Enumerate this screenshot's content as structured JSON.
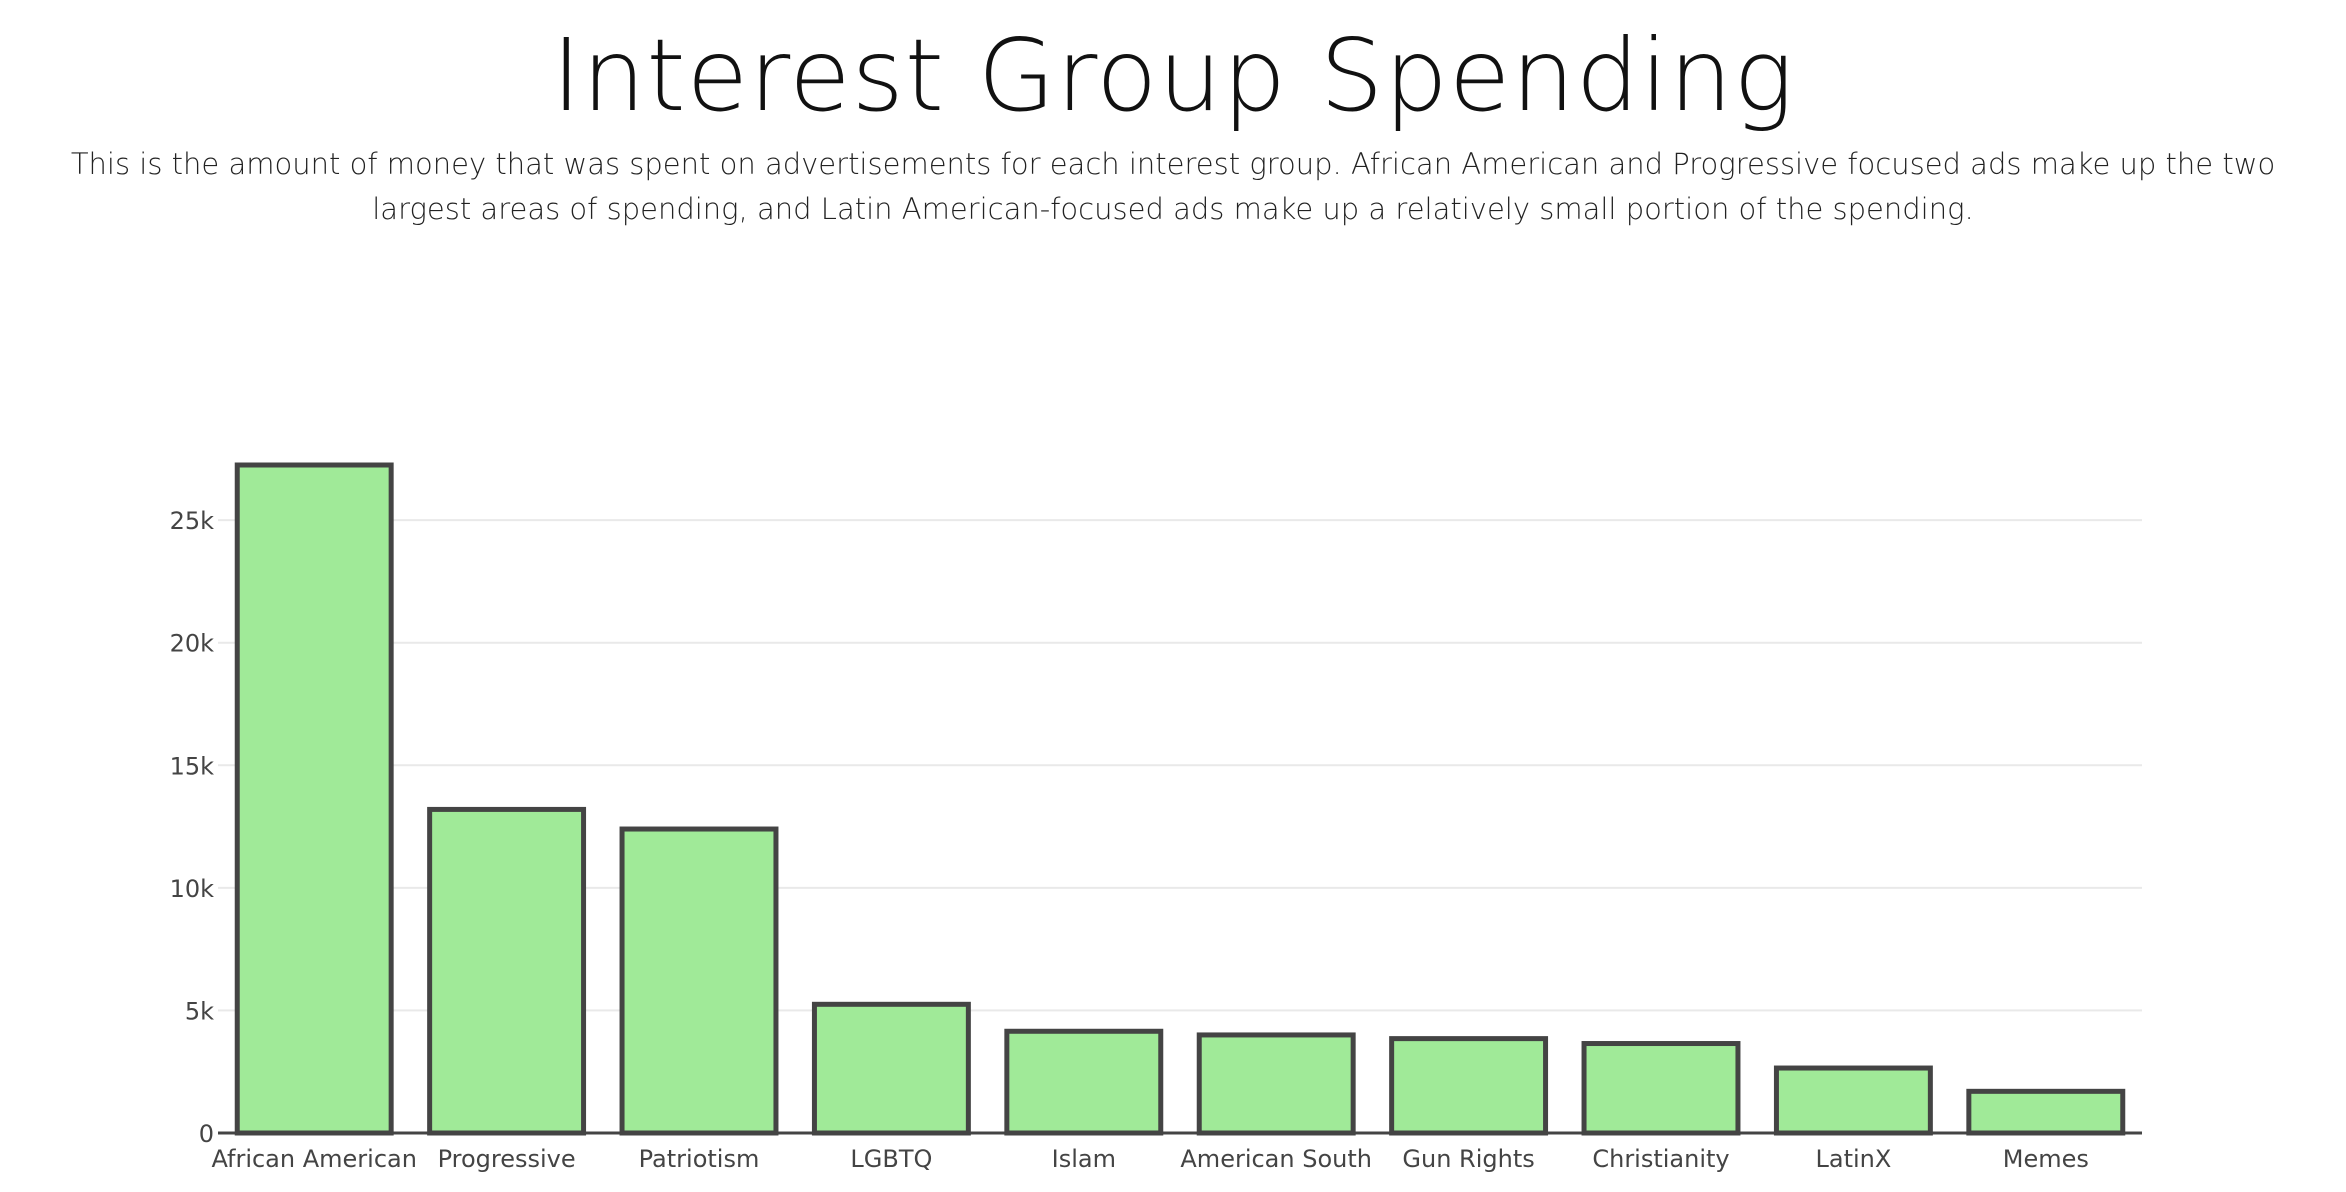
{
  "header": {
    "title": "Interest Group Spending",
    "subtitle": "This is the amount of money that was spent on advertisements for each interest group. African American and Progressive focused ads make up the two largest areas of spending, and Latin American-focused ads make up a relatively small portion of the spending."
  },
  "chart_data": {
    "type": "bar",
    "categories": [
      "African American",
      "Progressive",
      "Patriotism",
      "LGBTQ",
      "Islam",
      "American South",
      "Gun Rights",
      "Christianity",
      "LatinX",
      "Memes"
    ],
    "values": [
      27250,
      13200,
      12400,
      5250,
      4150,
      4000,
      3850,
      3650,
      2650,
      1700
    ],
    "ylim": [
      0,
      27250
    ],
    "yticks": [
      0,
      5000,
      10000,
      15000,
      20000,
      25000
    ],
    "ytick_labels": [
      "0",
      "5k",
      "10k",
      "15k",
      "20k",
      "25k"
    ],
    "grid": true,
    "colors": {
      "bar_fill": "#a0ea98",
      "bar_stroke": "#444444",
      "grid": "#e9e9e9",
      "axis": "#444444",
      "tick_text": "#444444"
    }
  }
}
